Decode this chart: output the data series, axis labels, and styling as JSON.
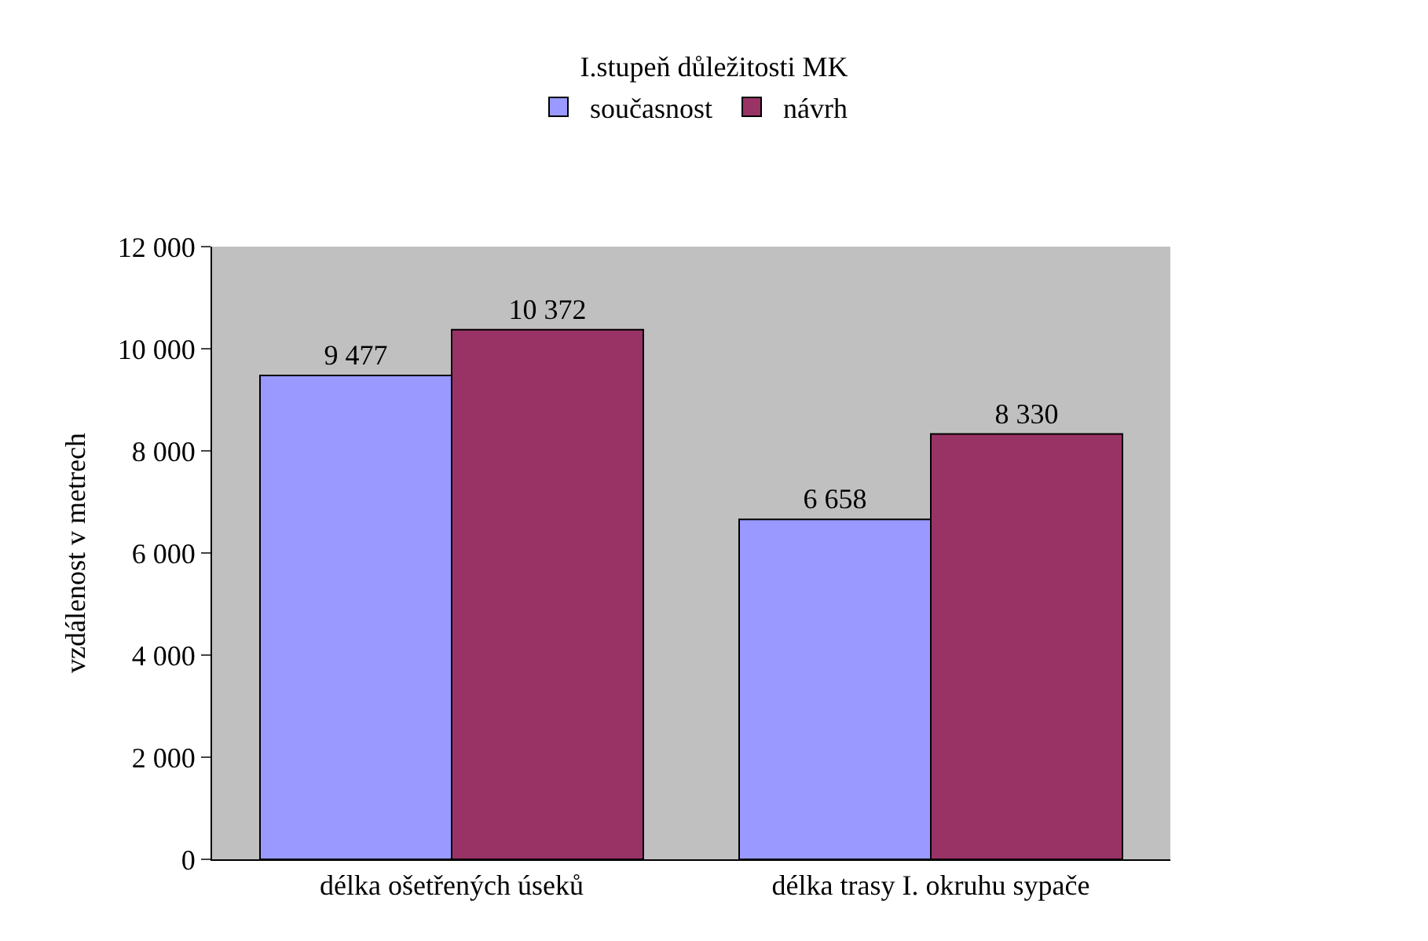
{
  "chart_data": {
    "type": "bar",
    "title": "I.stupeň důležitosti MK",
    "ylabel": "vzdálenost v metrech",
    "categories": [
      "délka ošetřených úseků",
      "délka trasy I. okruhu sypače"
    ],
    "series": [
      {
        "name": "současnost",
        "color": "#9999ff",
        "values": [
          9477,
          6658
        ],
        "value_labels": [
          "9 477",
          "6 658"
        ]
      },
      {
        "name": "návrh",
        "color": "#993366",
        "values": [
          10372,
          8330
        ],
        "value_labels": [
          "10 372",
          "8 330"
        ]
      }
    ],
    "ylim": [
      0,
      12000
    ],
    "yticks": [
      {
        "value": 0,
        "label": "0"
      },
      {
        "value": 2000,
        "label": "2 000"
      },
      {
        "value": 4000,
        "label": "4 000"
      },
      {
        "value": 6000,
        "label": "6 000"
      },
      {
        "value": 8000,
        "label": "8 000"
      },
      {
        "value": 10000,
        "label": "10 000"
      },
      {
        "value": 12000,
        "label": "12 000"
      }
    ],
    "grid": false,
    "legend": "top"
  }
}
